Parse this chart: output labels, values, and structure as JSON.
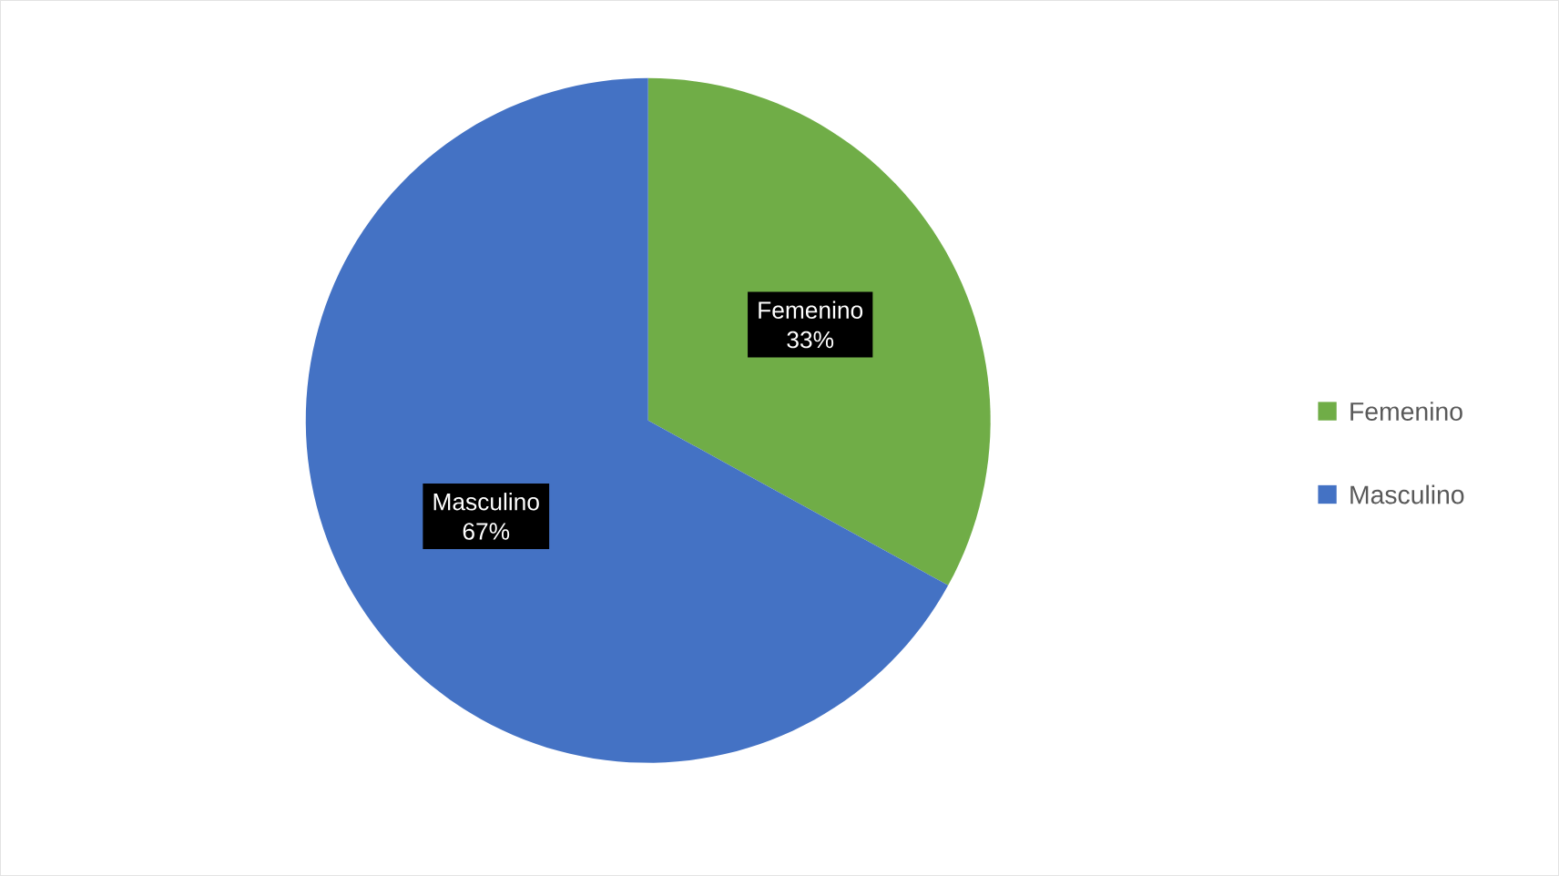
{
  "chart_data": {
    "type": "pie",
    "categories": [
      "Femenino",
      "Masculino"
    ],
    "values": [
      33,
      67
    ],
    "value_labels": [
      "33%",
      "67%"
    ],
    "colors": [
      "#70ad47",
      "#4472c4"
    ],
    "legend": "right"
  }
}
